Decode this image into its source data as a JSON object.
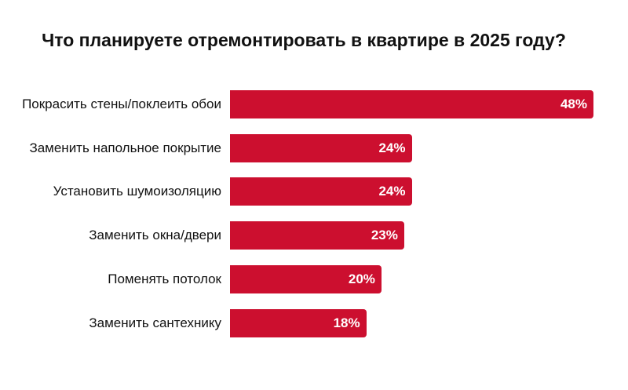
{
  "chart_data": {
    "type": "barh",
    "title": "Что планируете отремонтировать в квартире в 2025 году?",
    "categories": [
      "Покрасить стены/поклеить обои",
      "Заменить напольное покрытие",
      "Установить шумоизоляцию",
      "Заменить окна/двери",
      "Поменять потолок",
      "Заменить сантехнику"
    ],
    "values": [
      48,
      24,
      24,
      23,
      20,
      18
    ],
    "value_labels": [
      "48%",
      "24%",
      "24%",
      "23%",
      "20%",
      "18%"
    ],
    "color": "#cc0f2f"
  }
}
